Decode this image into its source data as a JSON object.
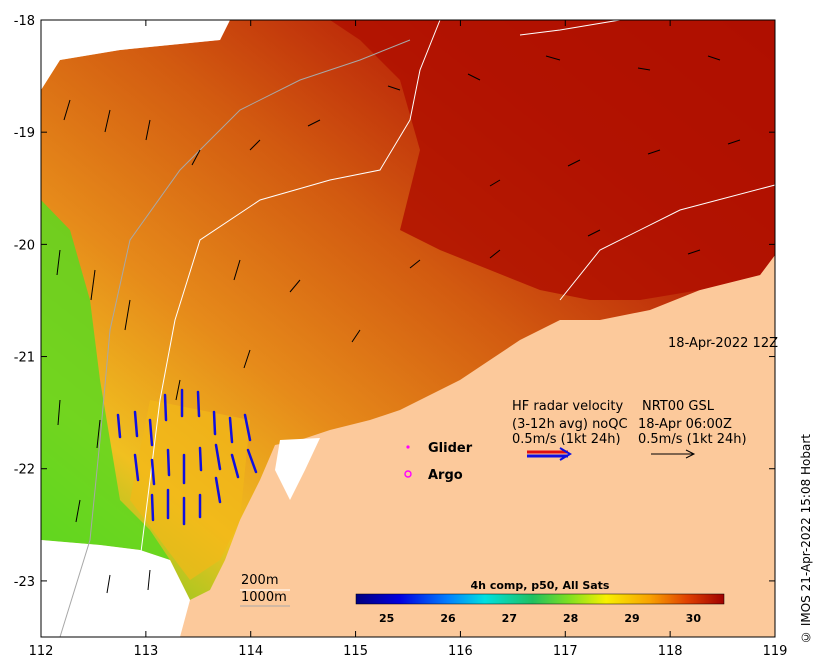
{
  "map": {
    "date_label": "18-Apr-2022 12Z",
    "x_ticks": [
      "112",
      "113",
      "114",
      "115",
      "116",
      "117",
      "118",
      "119"
    ],
    "y_ticks": [
      "-18",
      "-19",
      "-20",
      "-21",
      "-22",
      "-23"
    ],
    "x_range": [
      112,
      119
    ],
    "y_range": [
      -23.5,
      -18
    ],
    "colors": {
      "land": "#fcc99b",
      "ocean_hot": "#b01000",
      "ocean_mid": "#e0701a",
      "ocean_warm": "#f2b818",
      "ocean_cool": "#5cd820",
      "radar_blue": "#1010e0",
      "radar_red": "#e01010"
    }
  },
  "legend": {
    "radar_title": "HF radar velocity",
    "radar_avg": "(3-12h avg) noQC",
    "radar_scale": "0.5m/s (1kt 24h)",
    "nrt_title": "NRT00 GSL",
    "nrt_time": "18-Apr 06:00Z",
    "nrt_scale": "0.5m/s (1kt 24h)",
    "glider": "Glider",
    "argo": "Argo",
    "contour_200": "200m",
    "contour_1000": "1000m"
  },
  "colorbar": {
    "title": "4h comp, p50, All Sats",
    "ticks": [
      "25",
      "26",
      "27",
      "28",
      "29",
      "30"
    ],
    "range": [
      24.5,
      30.5
    ]
  },
  "credit": "© IMOS 21-Apr-2022 15:08 Hobart"
}
